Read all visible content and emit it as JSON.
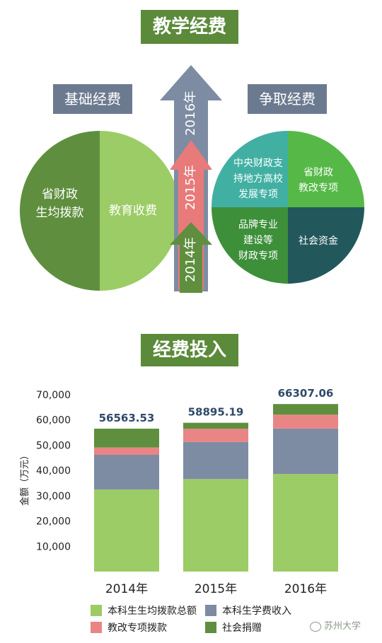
{
  "header": {
    "title": "教学经费",
    "basic_label": "基础经费",
    "compete_label": "争取经费"
  },
  "basic_circle": {
    "left_text": "省财政\n生均拨款",
    "right_text": "教育收费",
    "left_color": "#5f8f3e",
    "right_color": "#9ccc65"
  },
  "arrows": [
    {
      "year": "2016年",
      "color": "#7d8ca3"
    },
    {
      "year": "2015年",
      "color": "#e97a7a"
    },
    {
      "year": "2014年",
      "color": "#5f8f3e"
    }
  ],
  "compete_circle": {
    "q1": "中央财政支\n持地方高校\n发展专项",
    "q2": "省财政\n教改专项",
    "q3": "品牌专业\n建设等\n财政专项",
    "q4": "社会资金",
    "colors": [
      "#41b0a3",
      "#56b947",
      "#3d8f3a",
      "#22585c"
    ]
  },
  "section2_title": "经费投入",
  "watermark": "苏州大学",
  "chart_data": {
    "type": "bar",
    "stacked": true,
    "categories": [
      "2014年",
      "2015年",
      "2016年"
    ],
    "series": [
      {
        "name": "本科生生均拨款总额",
        "color": "#9ccc65",
        "values": [
          32500,
          36600,
          38600
        ]
      },
      {
        "name": "本科生学费收入",
        "color": "#7d8ca3",
        "values": [
          13700,
          14700,
          18000
        ]
      },
      {
        "name": "教改专项拨款",
        "color": "#e98585",
        "values": [
          2900,
          5200,
          5500
        ]
      },
      {
        "name": "社会捐赠",
        "color": "#5f8f3e",
        "values": [
          7463.53,
          2395.19,
          4207.06
        ]
      }
    ],
    "totals": [
      "56563.53",
      "58895.19",
      "66307.06"
    ],
    "ylabel": "金额（万元）",
    "ylim": [
      0,
      70000
    ],
    "yticks": [
      "10,000",
      "20,000",
      "30,000",
      "40,000",
      "50,000",
      "60,000",
      "70,000"
    ]
  }
}
